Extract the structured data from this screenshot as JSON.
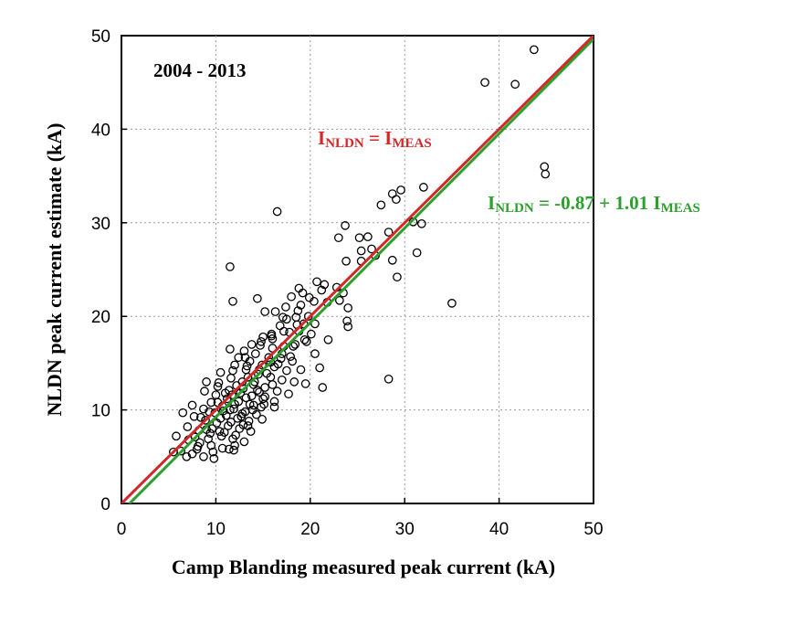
{
  "chart_data": {
    "type": "scatter",
    "xlabel": "Camp Blanding measured peak current (kA)",
    "ylabel": "NLDN peak current estimate (kA)",
    "xlim": [
      0,
      50
    ],
    "ylim": [
      0,
      50
    ],
    "x_ticks": [
      "0",
      "10",
      "20",
      "30",
      "40",
      "50"
    ],
    "y_ticks": [
      "0",
      "10",
      "20",
      "30",
      "40",
      "50"
    ],
    "grid": true,
    "period_label": "2004 - 2013",
    "lines": [
      {
        "label_main": "I",
        "label_sub1": "NLDN",
        "label_mid": " = I",
        "label_sub2": "MEAS",
        "label_tail": "",
        "intercept": 0,
        "slope": 1.0,
        "color": "#d62728",
        "x": [
          0,
          50
        ]
      },
      {
        "label_main": "I",
        "label_sub1": "NLDN",
        "label_mid": " = -0.87 + 1.01 I",
        "label_sub2": "MEAS",
        "label_tail": "",
        "intercept": -0.87,
        "slope": 1.01,
        "color": "#2ca02c",
        "x": [
          0,
          50
        ]
      }
    ],
    "points": [
      [
        43.7,
        48.5
      ],
      [
        38.5,
        45.0
      ],
      [
        41.7,
        44.8
      ],
      [
        44.8,
        36.0
      ],
      [
        44.9,
        35.2
      ],
      [
        35.0,
        21.4
      ],
      [
        28.3,
        13.3
      ],
      [
        16.5,
        31.2
      ],
      [
        11.5,
        25.3
      ],
      [
        11.8,
        21.6
      ],
      [
        14.4,
        21.9
      ],
      [
        32.0,
        33.8
      ],
      [
        29.6,
        33.5
      ],
      [
        28.7,
        33.1
      ],
      [
        29.1,
        32.5
      ],
      [
        27.5,
        31.9
      ],
      [
        30.9,
        30.1
      ],
      [
        31.8,
        29.9
      ],
      [
        23.7,
        29.7
      ],
      [
        28.3,
        29.0
      ],
      [
        23.0,
        28.4
      ],
      [
        25.2,
        28.4
      ],
      [
        26.1,
        28.5
      ],
      [
        25.4,
        27.0
      ],
      [
        26.5,
        27.2
      ],
      [
        31.3,
        26.8
      ],
      [
        26.9,
        26.5
      ],
      [
        23.8,
        25.9
      ],
      [
        25.4,
        25.9
      ],
      [
        28.7,
        26.0
      ],
      [
        29.2,
        24.2
      ],
      [
        20.7,
        23.7
      ],
      [
        21.5,
        23.4
      ],
      [
        18.8,
        23.0
      ],
      [
        19.2,
        22.5
      ],
      [
        22.8,
        23.1
      ],
      [
        23.5,
        22.5
      ],
      [
        18.0,
        22.1
      ],
      [
        19.0,
        21.2
      ],
      [
        21.8,
        21.5
      ],
      [
        23.1,
        21.7
      ],
      [
        24.0,
        20.9
      ],
      [
        23.9,
        19.5
      ],
      [
        24.0,
        18.9
      ],
      [
        17.4,
        21.0
      ],
      [
        16.3,
        20.5
      ],
      [
        17.5,
        19.7
      ],
      [
        18.5,
        19.9
      ],
      [
        19.3,
        19.2
      ],
      [
        20.5,
        19.2
      ],
      [
        15.2,
        20.5
      ],
      [
        16.8,
        19.0
      ],
      [
        17.8,
        18.3
      ],
      [
        15.9,
        18.1
      ],
      [
        15.0,
        17.8
      ],
      [
        14.8,
        17.3
      ],
      [
        13.8,
        17.0
      ],
      [
        16.0,
        16.6
      ],
      [
        17.2,
        16.8
      ],
      [
        18.4,
        17.0
      ],
      [
        19.6,
        17.3
      ],
      [
        21.9,
        17.5
      ],
      [
        11.5,
        16.5
      ],
      [
        13.0,
        16.3
      ],
      [
        14.2,
        16.0
      ],
      [
        15.6,
        15.6
      ],
      [
        16.9,
        15.5
      ],
      [
        18.1,
        15.2
      ],
      [
        20.5,
        16.0
      ],
      [
        12.4,
        15.6
      ],
      [
        13.6,
        15.2
      ],
      [
        14.9,
        14.8
      ],
      [
        16.2,
        14.6
      ],
      [
        17.5,
        14.2
      ],
      [
        19.0,
        14.3
      ],
      [
        21.0,
        14.5
      ],
      [
        12.0,
        14.8
      ],
      [
        13.2,
        14.3
      ],
      [
        14.5,
        13.8
      ],
      [
        15.8,
        13.5
      ],
      [
        17.0,
        13.2
      ],
      [
        18.3,
        13.0
      ],
      [
        19.5,
        12.8
      ],
      [
        21.3,
        12.4
      ],
      [
        10.5,
        14.0
      ],
      [
        11.6,
        13.4
      ],
      [
        12.8,
        13.0
      ],
      [
        14.0,
        12.7
      ],
      [
        15.2,
        12.4
      ],
      [
        16.5,
        12.0
      ],
      [
        17.7,
        11.7
      ],
      [
        9.0,
        13.0
      ],
      [
        10.2,
        12.5
      ],
      [
        11.4,
        12.1
      ],
      [
        12.6,
        11.8
      ],
      [
        13.8,
        11.5
      ],
      [
        15.0,
        11.2
      ],
      [
        16.2,
        10.9
      ],
      [
        8.8,
        12.0
      ],
      [
        10.0,
        11.6
      ],
      [
        11.2,
        11.2
      ],
      [
        12.4,
        10.9
      ],
      [
        13.6,
        10.6
      ],
      [
        14.8,
        10.3
      ],
      [
        9.5,
        10.8
      ],
      [
        10.7,
        10.4
      ],
      [
        11.9,
        10.1
      ],
      [
        13.1,
        9.8
      ],
      [
        14.3,
        9.5
      ],
      [
        7.5,
        10.5
      ],
      [
        8.7,
        10.1
      ],
      [
        9.9,
        9.7
      ],
      [
        11.1,
        9.4
      ],
      [
        12.3,
        9.1
      ],
      [
        13.5,
        8.8
      ],
      [
        6.5,
        9.7
      ],
      [
        7.7,
        9.3
      ],
      [
        8.9,
        8.9
      ],
      [
        10.1,
        8.6
      ],
      [
        11.3,
        8.3
      ],
      [
        12.5,
        8.0
      ],
      [
        13.7,
        7.7
      ],
      [
        7.0,
        8.2
      ],
      [
        8.2,
        7.8
      ],
      [
        9.4,
        7.5
      ],
      [
        10.6,
        7.2
      ],
      [
        11.8,
        6.9
      ],
      [
        13.0,
        6.6
      ],
      [
        5.8,
        7.2
      ],
      [
        7.1,
        6.8
      ],
      [
        8.3,
        6.5
      ],
      [
        9.5,
        6.2
      ],
      [
        10.7,
        5.9
      ],
      [
        11.9,
        5.7
      ],
      [
        6.3,
        5.6
      ],
      [
        7.5,
        5.3
      ],
      [
        8.7,
        5.0
      ],
      [
        9.8,
        4.8
      ],
      [
        5.5,
        5.5
      ],
      [
        6.9,
        5.0
      ],
      [
        8.0,
        5.8
      ],
      [
        9.2,
        6.9
      ],
      [
        10.4,
        7.7
      ],
      [
        11.6,
        8.7
      ],
      [
        12.8,
        9.6
      ],
      [
        14.0,
        10.5
      ],
      [
        15.2,
        11.4
      ],
      [
        10.8,
        9.9
      ],
      [
        12.0,
        10.6
      ],
      [
        13.2,
        11.3
      ],
      [
        14.4,
        12.1
      ],
      [
        11.0,
        11.8
      ],
      [
        12.2,
        12.6
      ],
      [
        13.4,
        13.5
      ],
      [
        14.6,
        14.3
      ],
      [
        15.8,
        15.1
      ],
      [
        17.0,
        16.0
      ],
      [
        18.2,
        16.8
      ],
      [
        19.4,
        17.5
      ],
      [
        16.0,
        17.6
      ],
      [
        17.2,
        18.4
      ],
      [
        18.6,
        19.1
      ],
      [
        19.8,
        20.0
      ],
      [
        20.4,
        21.6
      ],
      [
        9.6,
        8.0
      ],
      [
        10.9,
        7.6
      ],
      [
        12.1,
        7.3
      ],
      [
        8.4,
        9.2
      ],
      [
        7.8,
        7.1
      ],
      [
        9.0,
        7.9
      ],
      [
        10.2,
        10.8
      ],
      [
        12.9,
        12.3
      ],
      [
        14.1,
        13.0
      ],
      [
        15.4,
        13.9
      ],
      [
        16.6,
        14.9
      ],
      [
        17.9,
        15.7
      ],
      [
        11.5,
        10.0
      ],
      [
        12.7,
        9.3
      ],
      [
        13.9,
        10.0
      ],
      [
        15.1,
        10.6
      ],
      [
        14.6,
        11.9
      ],
      [
        16.0,
        12.7
      ],
      [
        13.3,
        14.7
      ],
      [
        18.8,
        18.4
      ],
      [
        20.1,
        18.1
      ],
      [
        9.3,
        9.8
      ],
      [
        10.5,
        9.1
      ],
      [
        11.7,
        11.6
      ],
      [
        12.9,
        8.4
      ],
      [
        8.1,
        6.1
      ],
      [
        9.7,
        5.5
      ],
      [
        11.4,
        5.8
      ],
      [
        12.0,
        6.2
      ],
      [
        13.4,
        8.3
      ],
      [
        14.9,
        9.0
      ],
      [
        16.2,
        10.3
      ],
      [
        10.3,
        12.9
      ],
      [
        11.8,
        14.2
      ],
      [
        13.1,
        15.6
      ],
      [
        14.7,
        16.9
      ],
      [
        15.9,
        17.9
      ],
      [
        17.1,
        19.9
      ],
      [
        18.7,
        20.6
      ],
      [
        19.9,
        22.0
      ],
      [
        21.2,
        22.8
      ]
    ]
  }
}
